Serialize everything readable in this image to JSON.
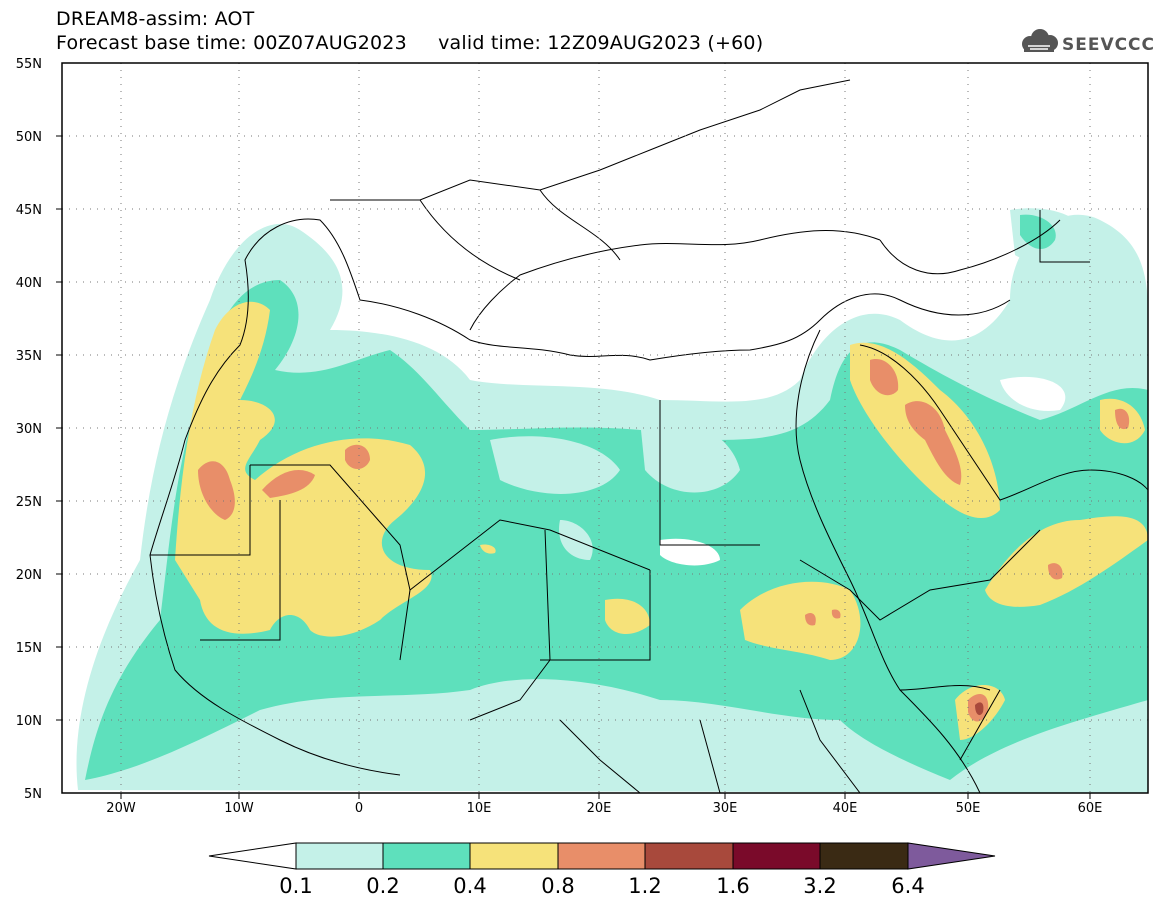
{
  "header": {
    "title": "DREAM8-assim: AOT",
    "subtitle": "Forecast base time: 00Z07AUG2023     valid time: 12Z09AUG2023 (+60)",
    "logo_text": "SEEVCCC"
  },
  "map": {
    "lon_range": [
      -25,
      65
    ],
    "lat_range": [
      5,
      55
    ],
    "lat_ticks": [
      "55N",
      "50N",
      "45N",
      "40N",
      "35N",
      "30N",
      "25N",
      "20N",
      "15N",
      "10N",
      "5N"
    ],
    "lon_ticks": [
      "20W",
      "10W",
      "0",
      "10E",
      "20E",
      "30E",
      "40E",
      "50E",
      "60E"
    ]
  },
  "legend": {
    "levels": [
      "0.1",
      "0.2",
      "0.4",
      "0.8",
      "1.2",
      "1.6",
      "3.2",
      "6.4"
    ],
    "colors": [
      "#c4f1e8",
      "#5ee0bc",
      "#f6e27a",
      "#e88e69",
      "#a8493c",
      "#7a0a2a",
      "#3a2a14",
      "#7e5a9c"
    ]
  }
}
